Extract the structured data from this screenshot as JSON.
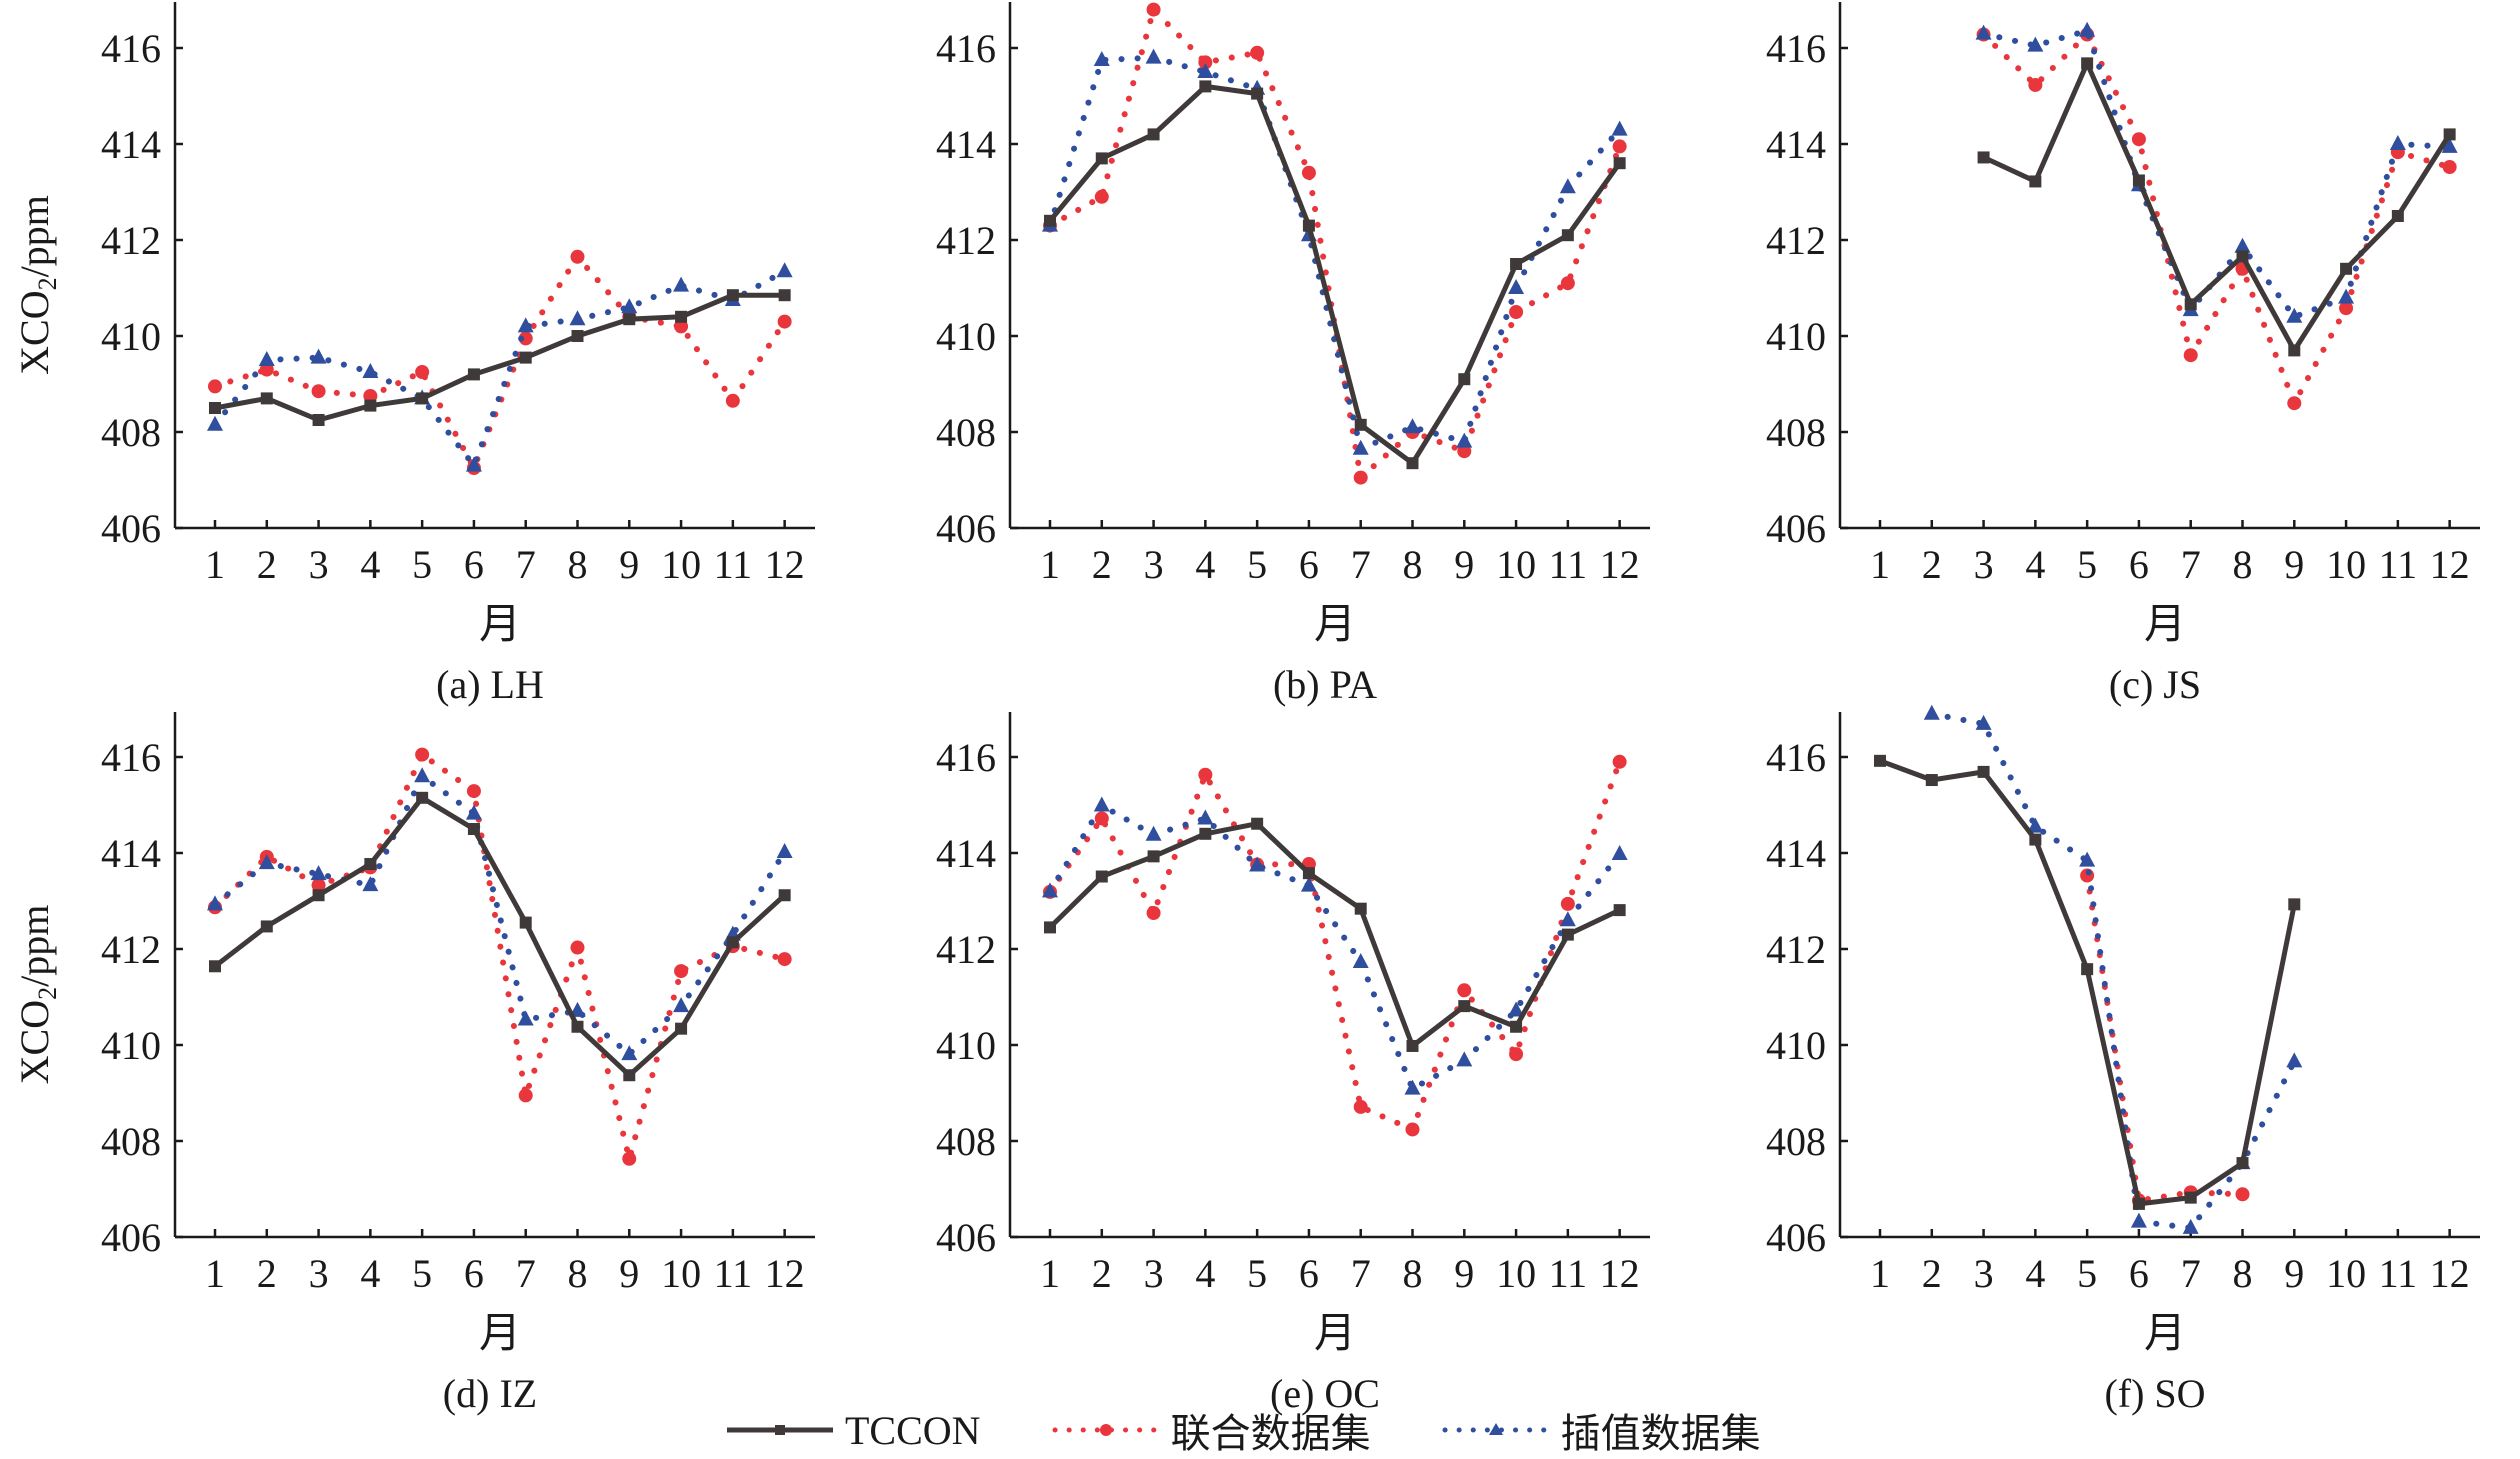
{
  "chart_data": {
    "type": "line",
    "shared": {
      "xlabel": "月",
      "ylabel": "XCO2/ppm",
      "ylabel_main": "XCO",
      "ylabel_sub": "2",
      "ylabel_unit": "/ppm",
      "ylim": [
        406,
        417
      ],
      "yticks": [
        406,
        408,
        410,
        412,
        414,
        416
      ],
      "xticks": [
        1,
        2,
        3,
        4,
        5,
        6,
        7,
        8,
        9,
        10,
        11,
        12
      ],
      "grid": false
    },
    "legend": {
      "placement": "bottom-center",
      "entries": [
        {
          "name": "TCCON",
          "color": "#3f3a39",
          "style": "solid",
          "marker": "square"
        },
        {
          "name": "联合数据集",
          "color": "#e8363c",
          "style": "dotted",
          "marker": "circle"
        },
        {
          "name": "插值数据集",
          "color": "#2f4f9e",
          "style": "dotted",
          "marker": "triangle"
        }
      ]
    },
    "panels": [
      {
        "caption": "(a) LH",
        "series": [
          {
            "name": "TCCON",
            "x": [
              1,
              2,
              3,
              4,
              5,
              6,
              7,
              8,
              9,
              10,
              11,
              12
            ],
            "y": [
              408.5,
              408.7,
              408.25,
              408.55,
              408.7,
              409.2,
              409.55,
              410.0,
              410.35,
              410.4,
              410.85,
              410.85
            ]
          },
          {
            "name": "联合数据集",
            "x": [
              1,
              2,
              3,
              4,
              5,
              6,
              7,
              8,
              9,
              10,
              11,
              12
            ],
            "y": [
              408.95,
              409.3,
              408.85,
              408.75,
              409.25,
              407.25,
              409.95,
              411.65,
              410.4,
              410.2,
              408.65,
              410.3
            ]
          },
          {
            "name": "插值数据集",
            "x": [
              1,
              2,
              3,
              4,
              5,
              6,
              7,
              8,
              9,
              10,
              11,
              12
            ],
            "y": [
              408.15,
              409.5,
              409.55,
              409.25,
              408.7,
              407.3,
              410.2,
              410.35,
              410.6,
              411.05,
              410.75,
              411.35
            ]
          }
        ]
      },
      {
        "caption": "(b) PA",
        "series": [
          {
            "name": "TCCON",
            "x": [
              1,
              2,
              3,
              4,
              5,
              6,
              7,
              8,
              9,
              10,
              11,
              12
            ],
            "y": [
              412.4,
              413.7,
              414.2,
              415.2,
              415.05,
              412.3,
              408.15,
              407.35,
              409.1,
              411.5,
              412.1,
              413.6
            ]
          },
          {
            "name": "联合数据集",
            "x": [
              1,
              2,
              3,
              4,
              5,
              6,
              7,
              8,
              9,
              10,
              11,
              12
            ],
            "y": [
              412.3,
              412.9,
              416.8,
              415.7,
              415.9,
              413.4,
              407.05,
              408.0,
              407.6,
              410.5,
              411.1,
              413.95
            ]
          },
          {
            "name": "插值数据集",
            "x": [
              1,
              2,
              3,
              4,
              5,
              6,
              7,
              8,
              9,
              10,
              11,
              12
            ],
            "y": [
              412.3,
              415.75,
              415.8,
              415.5,
              415.15,
              412.1,
              407.65,
              408.1,
              407.8,
              411.0,
              413.1,
              414.3
            ]
          }
        ]
      },
      {
        "caption": "(c) JS",
        "series": [
          {
            "name": "TCCON",
            "x": [
              3,
              4,
              5,
              6,
              7,
              8,
              9,
              10,
              11,
              12
            ],
            "y": [
              413.72,
              413.22,
              415.68,
              413.24,
              410.66,
              411.66,
              409.7,
              411.4,
              412.5,
              414.2
            ]
          },
          {
            "name": "联合数据集",
            "x": [
              3,
              4,
              5,
              6,
              7,
              8,
              9,
              10,
              11,
              12
            ],
            "y": [
              416.28,
              415.23,
              416.28,
              414.1,
              409.6,
              411.4,
              408.6,
              410.58,
              413.83,
              413.52
            ]
          },
          {
            "name": "插值数据集",
            "x": [
              3,
              4,
              5,
              6,
              7,
              8,
              9,
              10,
              11,
              12
            ],
            "y": [
              416.3,
              416.05,
              416.36,
              413.14,
              410.54,
              411.86,
              410.4,
              410.8,
              414.0,
              413.94
            ]
          }
        ]
      },
      {
        "caption": "(d) IZ",
        "series": [
          {
            "name": "TCCON",
            "x": [
              1,
              2,
              3,
              4,
              5,
              6,
              7,
              8,
              9,
              10,
              11,
              12
            ],
            "y": [
              411.64,
              412.47,
              413.12,
              413.77,
              415.15,
              414.5,
              412.55,
              410.38,
              409.37,
              410.34,
              412.14,
              413.12
            ]
          },
          {
            "name": "联合数据集",
            "x": [
              1,
              2,
              3,
              4,
              5,
              6,
              7,
              8,
              9,
              10,
              11,
              12
            ],
            "y": [
              412.87,
              413.92,
              413.33,
              413.7,
              416.05,
              415.29,
              408.95,
              412.03,
              407.63,
              411.54,
              412.06,
              411.79
            ]
          },
          {
            "name": "插值数据集",
            "x": [
              1,
              2,
              3,
              4,
              5,
              6,
              7,
              8,
              9,
              10,
              11,
              12
            ],
            "y": [
              412.93,
              413.79,
              413.56,
              413.33,
              415.6,
              414.82,
              410.53,
              410.71,
              409.81,
              410.81,
              412.3,
              414.02
            ]
          }
        ]
      },
      {
        "caption": "(e) OC",
        "series": [
          {
            "name": "TCCON",
            "x": [
              1,
              2,
              3,
              4,
              5,
              6,
              7,
              8,
              9,
              10,
              11,
              12
            ],
            "y": [
              412.45,
              413.51,
              413.93,
              414.4,
              414.61,
              413.58,
              412.84,
              409.98,
              410.81,
              410.38,
              412.3,
              412.81
            ]
          },
          {
            "name": "联合数据集",
            "x": [
              1,
              2,
              3,
              4,
              5,
              6,
              7,
              8,
              9,
              10,
              11,
              12
            ],
            "y": [
              413.19,
              414.72,
              412.75,
              415.63,
              413.76,
              413.77,
              408.71,
              408.24,
              411.14,
              409.81,
              412.94,
              415.9
            ]
          },
          {
            "name": "插值数据集",
            "x": [
              1,
              2,
              3,
              4,
              5,
              6,
              7,
              8,
              9,
              10,
              11,
              12
            ],
            "y": [
              413.2,
              414.99,
              414.38,
              414.72,
              413.74,
              413.32,
              411.73,
              409.09,
              409.68,
              410.72,
              412.6,
              413.98
            ]
          }
        ]
      },
      {
        "caption": "(f) SO",
        "series": [
          {
            "name": "TCCON",
            "x": [
              1,
              2,
              3,
              4,
              5,
              6,
              7,
              8,
              9
            ],
            "y": [
              415.92,
              415.52,
              415.69,
              414.28,
              411.58,
              406.69,
              406.82,
              407.54,
              412.93
            ]
          },
          {
            "name": "联合数据集",
            "x": [
              5,
              6,
              7,
              8
            ],
            "y": [
              413.53,
              406.76,
              406.93,
              406.89
            ]
          },
          {
            "name": "插值数据集",
            "x": [
              2,
              3,
              4,
              5,
              6,
              7,
              8,
              9
            ],
            "y": [
              416.9,
              416.69,
              414.55,
              413.84,
              406.32,
              406.19,
              407.54,
              409.66
            ]
          }
        ]
      }
    ]
  }
}
